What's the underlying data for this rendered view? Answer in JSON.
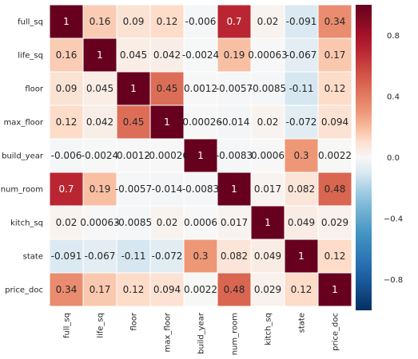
{
  "chart_data": {
    "type": "heatmap",
    "title": "",
    "xlabel": "",
    "ylabel": "",
    "x_labels": [
      "full_sq",
      "life_sq",
      "floor",
      "max_floor",
      "build_year",
      "num_room",
      "kitch_sq",
      "state",
      "price_doc"
    ],
    "y_labels": [
      "full_sq",
      "life_sq",
      "floor",
      "max_floor",
      "build_year",
      "num_room",
      "kitch_sq",
      "state",
      "price_doc"
    ],
    "values": [
      [
        1,
        0.16,
        0.09,
        0.12,
        -0.006,
        0.7,
        0.02,
        -0.091,
        0.34
      ],
      [
        0.16,
        1,
        0.045,
        0.042,
        -0.0024,
        0.19,
        0.00063,
        -0.067,
        0.17
      ],
      [
        0.09,
        0.045,
        1,
        0.45,
        0.0012,
        -0.0057,
        -0.0085,
        -0.11,
        0.12
      ],
      [
        0.12,
        0.042,
        0.45,
        1,
        -0.00026,
        -0.014,
        0.02,
        -0.072,
        0.094
      ],
      [
        -0.006,
        -0.0024,
        0.0012,
        -0.00026,
        1,
        -0.0083,
        0.0006,
        0.3,
        0.0022
      ],
      [
        0.7,
        0.19,
        -0.0057,
        -0.014,
        -0.0083,
        1,
        0.017,
        0.082,
        0.48
      ],
      [
        0.02,
        0.00063,
        -0.0085,
        0.02,
        0.0006,
        0.017,
        1,
        0.049,
        0.029
      ],
      [
        -0.091,
        -0.067,
        -0.11,
        -0.072,
        0.3,
        0.082,
        0.049,
        1,
        0.12
      ],
      [
        0.34,
        0.17,
        0.12,
        0.094,
        0.0022,
        0.48,
        0.029,
        0.12,
        1
      ]
    ],
    "annotations": [
      [
        "1",
        "0.16",
        "0.09",
        "0.12",
        "-0.006",
        "0.7",
        "0.02",
        "-0.091",
        "0.34"
      ],
      [
        "0.16",
        "1",
        "0.045",
        "0.042",
        "-0.0024",
        "0.19",
        "0.00063",
        "-0.067",
        "0.17"
      ],
      [
        "0.09",
        "0.045",
        "1",
        "0.45",
        "0.0012",
        "-0.0057",
        "-0.0085",
        "-0.11",
        "0.12"
      ],
      [
        "0.12",
        "0.042",
        "0.45",
        "1",
        "-0.00026",
        "-0.014",
        "0.02",
        "-0.072",
        "0.094"
      ],
      [
        "-0.006",
        "-0.0024",
        "0.0012",
        "-0.00026",
        "1",
        "-0.0083",
        "0.0006",
        "0.3",
        "0.0022"
      ],
      [
        "0.7",
        "0.19",
        "-0.0057",
        "-0.014",
        "-0.0083",
        "1",
        "0.017",
        "0.082",
        "0.48"
      ],
      [
        "0.02",
        "0.00063",
        "-0.0085",
        "0.02",
        "0.0006",
        "0.017",
        "1",
        "0.049",
        "0.029"
      ],
      [
        "-0.091",
        "-0.067",
        "-0.11",
        "-0.072",
        "0.3",
        "0.082",
        "0.049",
        "1",
        "0.12"
      ],
      [
        "0.34",
        "0.17",
        "0.12",
        "0.094",
        "0.0022",
        "0.48",
        "0.029",
        "0.12",
        "1"
      ]
    ],
    "colormap": "RdBu_r",
    "vmin": -1,
    "vmax": 1,
    "colorbar": {
      "ticks": [
        0.8,
        0.4,
        0.0,
        -0.4,
        -0.8
      ],
      "tick_labels": [
        "0.8",
        "0.4",
        "0.0",
        "−0.4",
        "−0.8"
      ]
    },
    "grid": false,
    "legend": "colorbar-right"
  }
}
